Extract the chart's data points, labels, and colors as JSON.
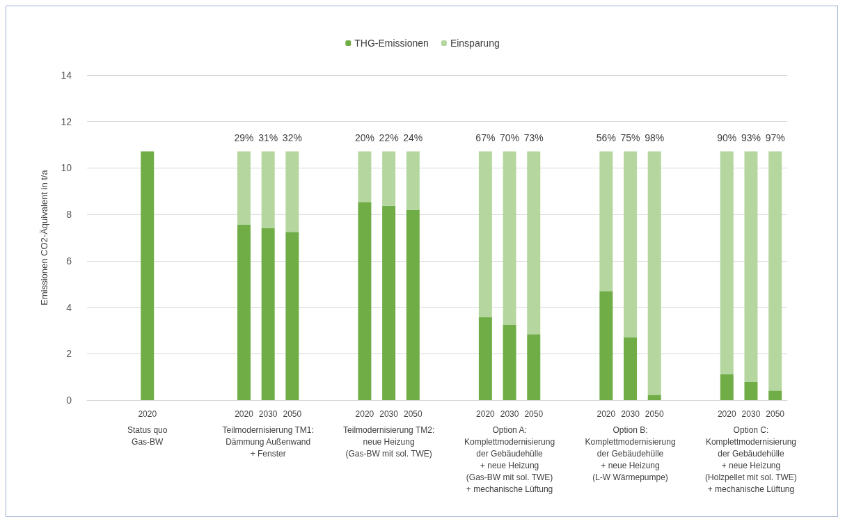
{
  "chart_data": {
    "type": "bar",
    "stacked": true,
    "ylabel": "Emissionen CO2-Äquivalent in t/a",
    "categories": [
      null,
      null,
      "2020",
      null,
      null,
      null,
      "2020",
      "2030",
      "2050",
      null,
      null,
      "2020",
      "2030",
      "2050",
      null,
      null,
      "2020",
      "2030",
      "2050",
      null,
      null,
      "2020",
      "2030",
      "2050",
      null,
      null,
      "2020",
      "2030",
      "2050"
    ],
    "series": [
      {
        "name": "THG-Emissionen",
        "color": "#70ad47",
        "values": [
          null,
          null,
          10.72,
          null,
          null,
          null,
          7.57,
          7.42,
          7.25,
          null,
          null,
          8.54,
          8.37,
          8.2,
          null,
          null,
          3.57,
          3.25,
          2.84,
          null,
          null,
          4.7,
          2.7,
          0.23,
          null,
          null,
          1.11,
          0.78,
          0.41
        ]
      },
      {
        "name": "Einsparung",
        "color": "#b5d79f",
        "values": [
          null,
          null,
          null,
          null,
          null,
          null,
          3.15,
          3.3,
          3.47,
          null,
          null,
          2.18,
          2.35,
          2.52,
          null,
          null,
          7.15,
          7.47,
          7.88,
          null,
          null,
          6.02,
          8.02,
          10.49,
          null,
          null,
          9.61,
          9.94,
          10.31
        ]
      }
    ],
    "ylim": [
      0,
      14
    ],
    "yticks": [
      0,
      2,
      4,
      6,
      8,
      10,
      12,
      14
    ],
    "grid": "y",
    "legend": "top",
    "annotations": [
      "29%",
      "31%",
      "32%",
      "20%",
      "22%",
      "24%",
      "67%",
      "70%",
      "73%",
      "56%",
      "75%",
      "98%",
      "90%",
      "93%",
      "97%",
      "Status quo\nGas-BW",
      "Teilmodernisierung TM1:\nDämmung Außenwand\n+ Fenster",
      "Teilmodernisierung TM2:\nneue Heizung\n(Gas-BW mit sol. TWE)",
      "Option A:\nKomplettmodernisierung\nder Gebäudehülle\n+ neue Heizung\n(Gas-BW mit sol. TWE)\n+ mechanische Lüftung",
      "Option B:\nKomplettmodernisierung\nder Gebäudehülle\n+ neue Heizung\n(L-W Wärmepumpe)",
      "Option C:\nKomplettmodernisierung\nder Gebäudehülle\n+ neue Heizung\n(Holzpellet mit sol. TWE)\n+ mechanische Lüftung"
    ]
  }
}
